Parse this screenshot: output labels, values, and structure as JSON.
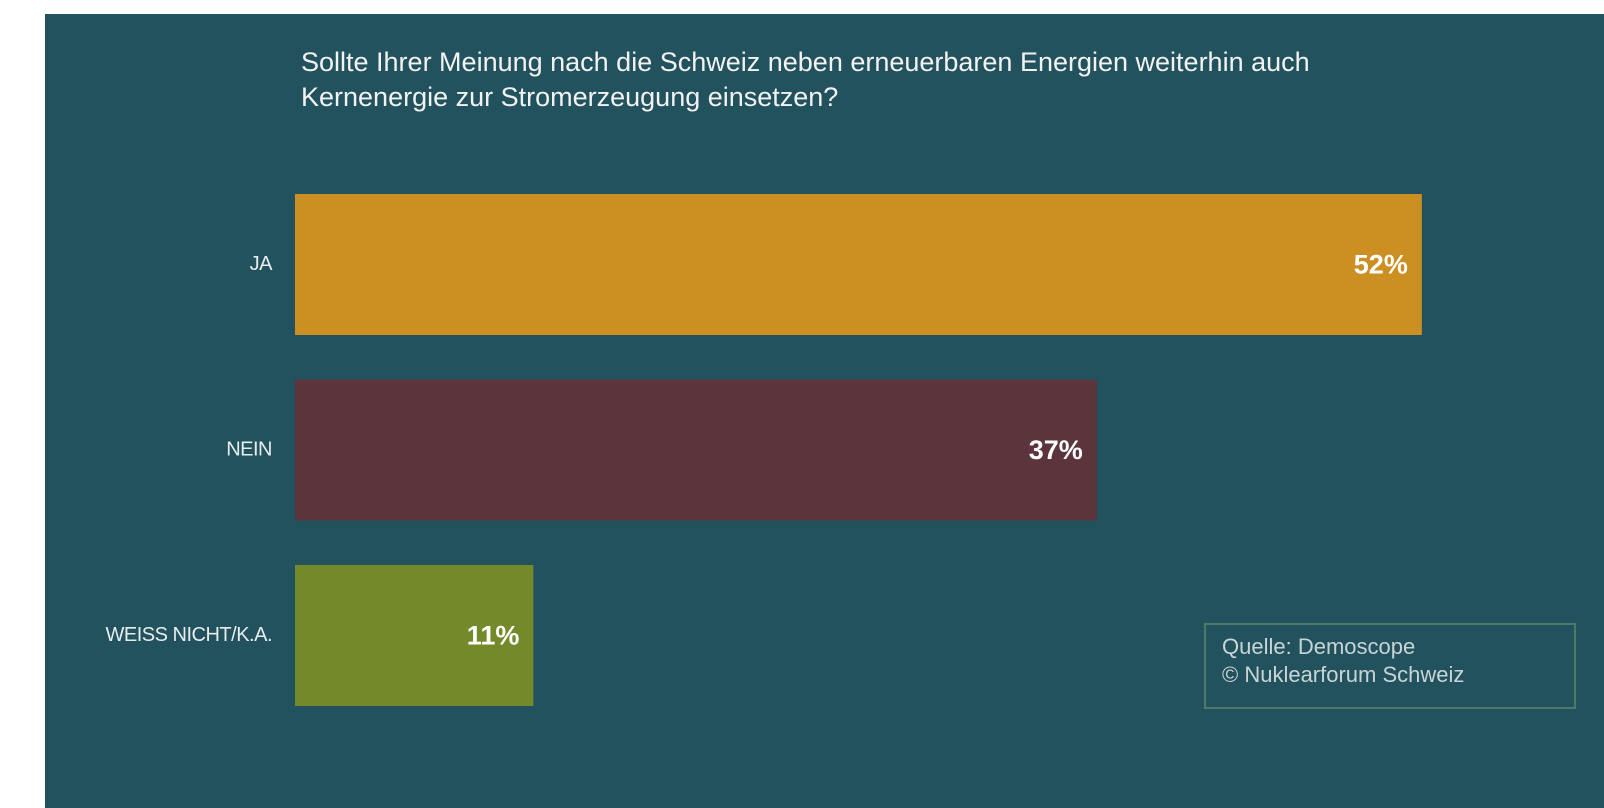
{
  "chart_data": {
    "type": "barh",
    "title": [
      "Sollte Ihrer Meinung nach die Schweiz neben erneuerbaren Energien weiterhin auch",
      "Kernenergie zur Stromerzeugung einsetzen?"
    ],
    "categories": [
      "JA",
      "NEIN",
      "WEISS NICHT/K.A."
    ],
    "values": [
      52,
      37,
      11
    ],
    "value_labels": [
      "52%",
      "37%",
      "11%"
    ],
    "colors": [
      "#cc8f22",
      "#5c343c",
      "#748a2a"
    ],
    "source": [
      "Quelle: Demoscope",
      "© Nuklearforum Schweiz"
    ]
  }
}
